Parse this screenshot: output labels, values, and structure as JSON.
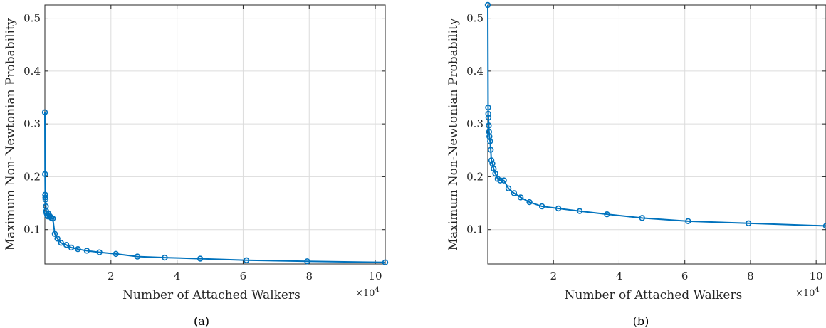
{
  "figure": {
    "panels": [
      {
        "caption": "(a)",
        "exponent": "×10",
        "exponent_power": "4"
      },
      {
        "caption": "(b)",
        "exponent": "×10",
        "exponent_power": "4"
      }
    ]
  },
  "style": {
    "line_color": "#0072BD",
    "grid_color": "#dcdcdc",
    "axis_color": "#262626"
  },
  "chart_data": [
    {
      "type": "line",
      "xlabel": "Number of Attached Walkers",
      "ylabel": "Maximum Non-Newtonian Probability",
      "xlim": [
        0,
        103000
      ],
      "ylim": [
        0.035,
        0.525
      ],
      "xticks": [
        2,
        4,
        6,
        8,
        10
      ],
      "xtick_labels": [
        "2",
        "4",
        "6",
        "8",
        "10"
      ],
      "yticks": [
        0.1,
        0.2,
        0.3,
        0.4,
        0.5
      ],
      "ytick_labels": [
        "0.1",
        "0.2",
        "0.3",
        "0.4",
        "0.5"
      ],
      "grid": true,
      "series": [
        {
          "marker": "circle",
          "x": [
            0,
            50,
            100,
            150,
            200,
            300,
            400,
            500,
            700,
            900,
            1100,
            1400,
            1700,
            2000,
            2400,
            3000,
            3800,
            4900,
            6500,
            8000,
            10000,
            12700,
            16500,
            21500,
            28000,
            36300,
            47000,
            61000,
            79400,
            103000
          ],
          "y": [
            0.322,
            0.205,
            0.166,
            0.161,
            0.157,
            0.144,
            0.135,
            0.131,
            0.127,
            0.125,
            0.13,
            0.126,
            0.124,
            0.122,
            0.121,
            0.092,
            0.083,
            0.075,
            0.071,
            0.066,
            0.063,
            0.06,
            0.057,
            0.054,
            0.049,
            0.047,
            0.045,
            0.042,
            0.04,
            0.038
          ]
        }
      ]
    },
    {
      "type": "line",
      "xlabel": "Number of Attached Walkers",
      "ylabel": "Maximum Non-Newtonian Probability",
      "xlim": [
        0,
        103000
      ],
      "ylim": [
        0.035,
        0.525
      ],
      "xticks": [
        2,
        4,
        6,
        8,
        10
      ],
      "xtick_labels": [
        "2",
        "4",
        "6",
        "8",
        "10"
      ],
      "yticks": [
        0.1,
        0.2,
        0.3,
        0.4,
        0.5
      ],
      "ytick_labels": [
        "0.1",
        "0.2",
        "0.3",
        "0.4",
        "0.5"
      ],
      "grid": true,
      "series": [
        {
          "marker": "circle",
          "x": [
            0,
            100,
            150,
            200,
            300,
            400,
            500,
            700,
            900,
            1100,
            1400,
            1800,
            2300,
            3000,
            3800,
            4900,
            6300,
            8000,
            10000,
            12700,
            16500,
            21500,
            28000,
            36300,
            47000,
            61000,
            79400,
            103000
          ],
          "y": [
            0.525,
            0.331,
            0.319,
            0.312,
            0.297,
            0.285,
            0.276,
            0.267,
            0.251,
            0.231,
            0.225,
            0.215,
            0.206,
            0.196,
            0.193,
            0.193,
            0.178,
            0.169,
            0.161,
            0.152,
            0.144,
            0.14,
            0.135,
            0.129,
            0.122,
            0.116,
            0.112,
            0.107
          ]
        }
      ]
    }
  ]
}
